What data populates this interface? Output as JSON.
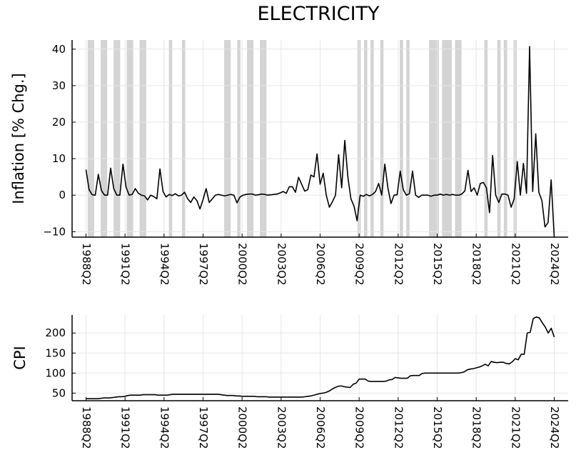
{
  "chart_data": [
    {
      "type": "line",
      "title": "ELECTRICITY",
      "ylabel": "Inflation [% Chg.]",
      "xlabel": "",
      "x_start": "1988Q2",
      "x_end": "2024Q2",
      "xticks": [
        "1988Q2",
        "1991Q2",
        "1994Q2",
        "1997Q2",
        "2000Q2",
        "2003Q2",
        "2006Q2",
        "2009Q2",
        "2012Q2",
        "2015Q2",
        "2018Q2",
        "2021Q2",
        "2024Q2"
      ],
      "yticks": [
        -10,
        0,
        10,
        20,
        30,
        40
      ],
      "ylim": [
        -11.5,
        42.5
      ],
      "grid": true,
      "legend": "none",
      "line_color": "#000000",
      "shade_color": "#d3d3d3",
      "shaded_quarters": [
        "1988Q3",
        "1988Q4",
        "1989Q3",
        "1989Q4",
        "1990Q3",
        "1990Q4",
        "1991Q3",
        "1991Q4",
        "1992Q3",
        "1992Q4",
        "1994Q4",
        "1995Q4",
        "1999Q1",
        "1999Q2",
        "2000Q1",
        "2000Q4",
        "2001Q1",
        "2001Q4",
        "2002Q1",
        "2009Q2",
        "2009Q4",
        "2010Q2",
        "2011Q1",
        "2012Q3",
        "2013Q1",
        "2014Q4",
        "2015Q1",
        "2015Q2",
        "2015Q4",
        "2016Q1",
        "2016Q2",
        "2016Q4",
        "2017Q1",
        "2019Q1",
        "2020Q1",
        "2020Q3",
        "2021Q2"
      ],
      "series": [
        {
          "values": [
            7.0,
            1.5,
            0.1,
            0.0,
            5.7,
            1.3,
            0.0,
            0.0,
            7.4,
            1.8,
            0.0,
            0.0,
            8.5,
            2.2,
            0.0,
            0.2,
            1.8,
            0.5,
            0.0,
            -0.2,
            -1.3,
            0.0,
            -0.4,
            -1.0,
            7.2,
            1.0,
            -0.5,
            0.2,
            -0.1,
            0.4,
            -0.2,
            0.0,
            0.8,
            -1.0,
            -2.0,
            -0.5,
            -1.5,
            -3.8,
            -1.2,
            1.8,
            -2.0,
            -1.0,
            0.0,
            0.2,
            0.0,
            -0.2,
            0.0,
            0.2,
            0.0,
            -2.1,
            -0.5,
            0.0,
            0.2,
            0.3,
            0.3,
            0.0,
            0.1,
            0.3,
            0.2,
            0.0,
            0.1,
            0.2,
            0.3,
            0.6,
            1.0,
            0.5,
            2.3,
            2.3,
            0.8,
            4.9,
            3.0,
            1.1,
            1.5,
            5.5,
            5.0,
            11.3,
            3.0,
            6.0,
            0.0,
            -3.3,
            -1.8,
            0.0,
            11.1,
            2.0,
            15.0,
            5.0,
            -1.0,
            -3.0,
            -7.0,
            0.0,
            -0.3,
            0.2,
            -0.2,
            0.2,
            1.0,
            3.2,
            0.0,
            8.5,
            2.0,
            -2.3,
            0.0,
            0.1,
            6.6,
            1.5,
            0.0,
            0.4,
            6.6,
            0.0,
            -0.6,
            0.0,
            0.0,
            0.0,
            -0.3,
            0.0,
            0.0,
            0.3,
            0.0,
            0.2,
            0.0,
            0.2,
            0.0,
            0.0,
            0.3,
            1.2,
            6.8,
            1.0,
            2.0,
            0.0,
            3.2,
            3.5,
            2.0,
            -4.8,
            10.9,
            0.0,
            -2.0,
            0.3,
            0.3,
            0.0,
            -3.3,
            -1.0,
            9.2,
            0.0,
            8.7,
            0.5,
            40.7,
            1.0,
            16.8,
            0.8,
            -1.5,
            -8.7,
            -7.5,
            4.2,
            -12.0
          ]
        }
      ]
    },
    {
      "type": "line",
      "title": "",
      "ylabel": "CPI",
      "xlabel": "",
      "x_start": "1988Q2",
      "x_end": "2024Q2",
      "xticks": [
        "1988Q2",
        "1991Q2",
        "1994Q2",
        "1997Q2",
        "2000Q2",
        "2003Q2",
        "2006Q2",
        "2009Q2",
        "2012Q2",
        "2015Q2",
        "2018Q2",
        "2021Q2",
        "2024Q2"
      ],
      "yticks": [
        50,
        100,
        150,
        200
      ],
      "ylim": [
        31,
        245
      ],
      "grid": true,
      "legend": "none",
      "line_color": "#000000",
      "series": [
        {
          "values": [
            36.0,
            36.0,
            36.0,
            36.0,
            36.0,
            37.0,
            38.0,
            38.0,
            38.0,
            39.0,
            40.0,
            41.0,
            41.0,
            42.0,
            44.0,
            45.0,
            45.0,
            45.0,
            45.0,
            46.0,
            46.0,
            46.0,
            46.0,
            46.0,
            45.0,
            45.0,
            45.0,
            45.0,
            46.0,
            47.0,
            47.0,
            47.0,
            47.0,
            47.0,
            47.0,
            47.0,
            47.0,
            47.0,
            47.0,
            47.0,
            47.0,
            47.0,
            47.0,
            47.0,
            47.0,
            46.0,
            45.0,
            44.0,
            44.0,
            44.0,
            43.0,
            43.0,
            42.0,
            42.0,
            42.0,
            42.0,
            42.0,
            41.0,
            41.0,
            41.0,
            41.0,
            40.0,
            40.0,
            40.0,
            40.0,
            40.0,
            40.0,
            40.0,
            40.0,
            40.0,
            40.0,
            40.0,
            40.0,
            41.0,
            42.0,
            43.0,
            45.0,
            47.0,
            49.0,
            50.0,
            52.0,
            55.0,
            60.0,
            64.0,
            67.0,
            68.0,
            66.0,
            65.0,
            64.0,
            72.0,
            75.0,
            85.0,
            85.0,
            85.0,
            80.0,
            79.0,
            79.0,
            79.0,
            79.0,
            79.0,
            80.0,
            83.0,
            84.0,
            89.0,
            88.0,
            87.0,
            87.0,
            87.0,
            93.0,
            94.0,
            94.0,
            94.0,
            99.0,
            100.0,
            100.0,
            100.0,
            100.0,
            100.0,
            100.0,
            100.0,
            100.0,
            100.0,
            100.0,
            100.0,
            100.0,
            101.0,
            103.0,
            108.0,
            110.0,
            111.0,
            113.0,
            115.0,
            118.0,
            122.0,
            118.0,
            129.0,
            127.0,
            126.0,
            127.0,
            127.0,
            124.0,
            123.0,
            128.0,
            136.0,
            133.0,
            147.0,
            147.0,
            200.0,
            202.0,
            236.0,
            240.0,
            238.0,
            226.0,
            215.0,
            200.0,
            212.0,
            190.0
          ]
        }
      ]
    }
  ]
}
